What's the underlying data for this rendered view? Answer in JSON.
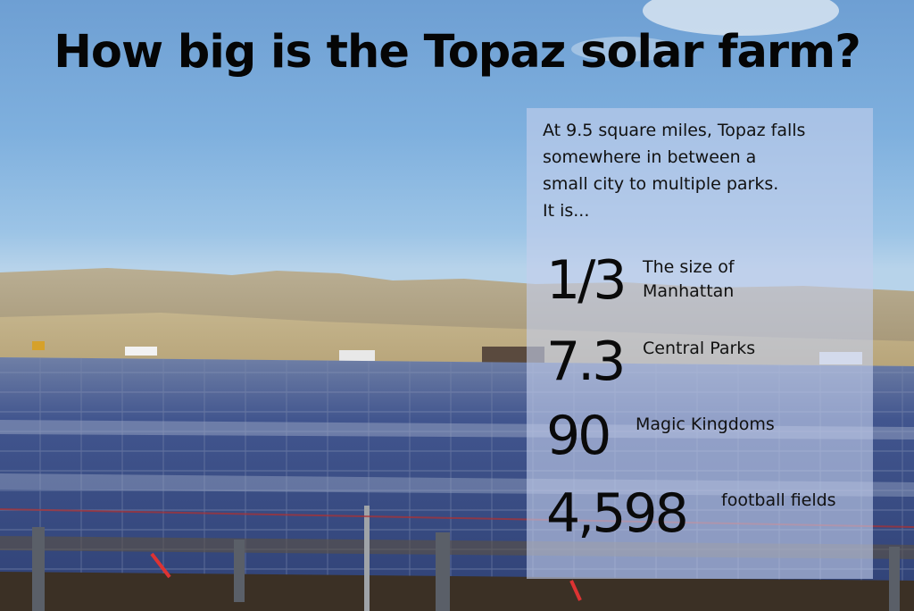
{
  "title": "How big is the Topaz solar farm?",
  "intro_lines": [
    "At 9.5 square miles, Topaz falls",
    "somewhere in between a",
    "small city to multiple parks.",
    "It is..."
  ],
  "stats": [
    {
      "value": "1/3",
      "label_lines": [
        "The size of",
        "Manhattan"
      ]
    },
    {
      "value": "7.3",
      "label_lines": [
        "Central Parks"
      ]
    },
    {
      "value": "90",
      "label_lines": [
        "Magic Kingdoms"
      ]
    },
    {
      "value": "4,598",
      "label_lines": [
        "football fields"
      ]
    }
  ],
  "colors": {
    "sky": "#7fb0de",
    "hills": "#b3a584",
    "panels": "#3a4e86",
    "panel_overlay": "#c4ceec"
  }
}
